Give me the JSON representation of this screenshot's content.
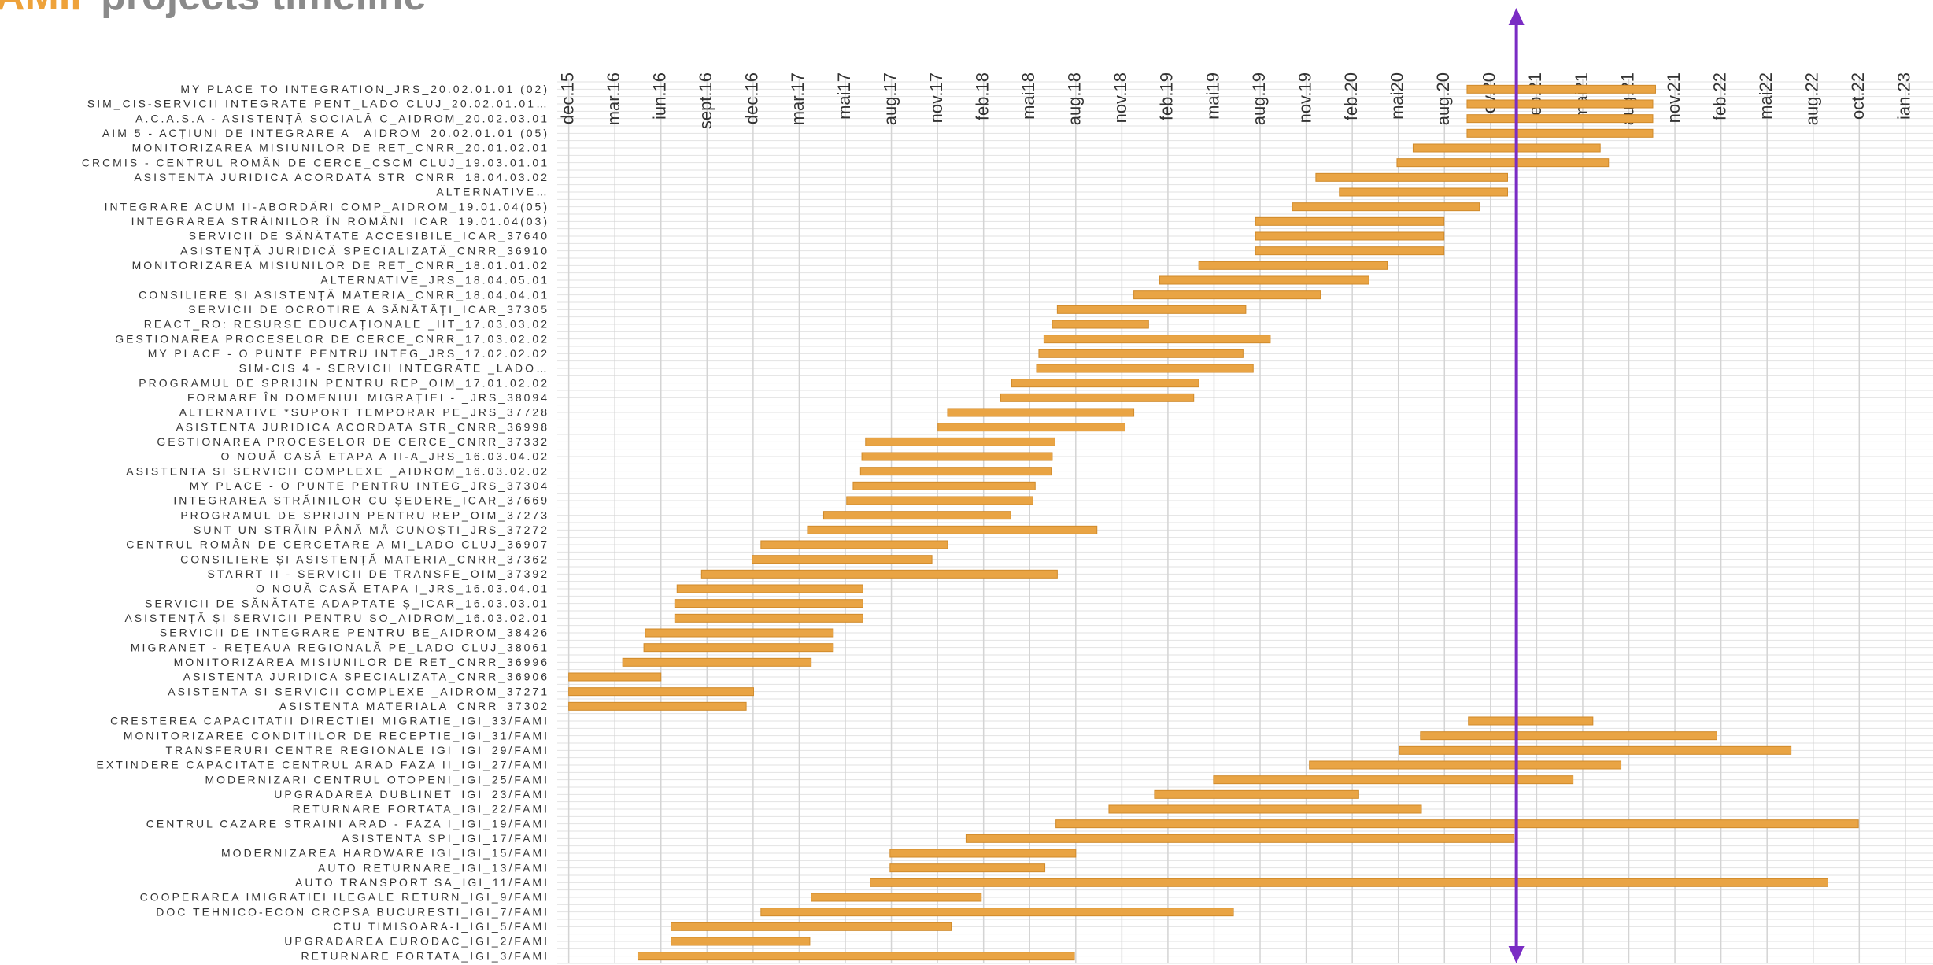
{
  "chart_data": {
    "type": "gantt",
    "title_prefix": "AMIF",
    "title": "projects timeline",
    "color": "#e9a444",
    "marker_color": "#7a2cc4",
    "grid": true,
    "xlim": [
      -0.25,
      29.6
    ],
    "xticks": [
      {
        "value": 0,
        "label": "dec.15"
      },
      {
        "value": 1,
        "label": "mar.16"
      },
      {
        "value": 2,
        "label": "iun.16"
      },
      {
        "value": 3,
        "label": "sept.16"
      },
      {
        "value": 4,
        "label": "dec.16"
      },
      {
        "value": 5,
        "label": "mar.17"
      },
      {
        "value": 6,
        "label": "mai17"
      },
      {
        "value": 7,
        "label": "aug.17"
      },
      {
        "value": 8,
        "label": "nov.17"
      },
      {
        "value": 9,
        "label": "feb.18"
      },
      {
        "value": 10,
        "label": "mai18"
      },
      {
        "value": 11,
        "label": "aug.18"
      },
      {
        "value": 12,
        "label": "nov.18"
      },
      {
        "value": 13,
        "label": "feb.19"
      },
      {
        "value": 14,
        "label": "mai19"
      },
      {
        "value": 15,
        "label": "aug.19"
      },
      {
        "value": 16,
        "label": "nov.19"
      },
      {
        "value": 17,
        "label": "feb.20"
      },
      {
        "value": 18,
        "label": "mai20"
      },
      {
        "value": 19,
        "label": "aug.20"
      },
      {
        "value": 20,
        "label": "nov.20"
      },
      {
        "value": 21,
        "label": "feb.21"
      },
      {
        "value": 22,
        "label": "mai21"
      },
      {
        "value": 23,
        "label": "aug.21"
      },
      {
        "value": 24,
        "label": "nov.21"
      },
      {
        "value": 25,
        "label": "feb.22"
      },
      {
        "value": 26,
        "label": "mai22"
      },
      {
        "value": 27,
        "label": "aug.22"
      },
      {
        "value": 28,
        "label": "oct.22"
      },
      {
        "value": 29,
        "label": "ian.23"
      }
    ],
    "today_marker": 20.56,
    "categories": [
      "MY PLACE TO INTEGRATION_JRS_20.02.01.01 (02)",
      "SIM_CIS-SERVICII INTEGRATE PENT_LADO CLUJ_20.02.01.01…",
      "A.C.A.S.A - ASISTENȚĂ SOCIALĂ C_AIDROM_20.02.03.01",
      "AIM 5 - ACȚIUNI DE INTEGRARE A _AIDROM_20.02.01.01 (05)",
      "MONITORIZAREA MISIUNILOR DE RET_CNRR_20.01.02.01",
      "CRCMIS - CENTRUL ROMÂN DE CERCE_CSCM CLUJ_19.03.01.01",
      "ASISTENTA JURIDICA ACORDATA STR_CNRR_18.04.03.02",
      "ALTERNATIVE…",
      "INTEGRARE ACUM II-ABORDĂRI COMP_AIDROM_19.01.04(05)",
      "INTEGRAREA STRĂINILOR ÎN ROMÂNI_ICAR_19.01.04(03)",
      "SERVICII DE SĂNĂTATE ACCESIBILE_ICAR_37640",
      "ASISTENȚĂ JURIDICĂ SPECIALIZATĂ_CNRR_36910",
      "MONITORIZAREA MISIUNILOR DE RET_CNRR_18.01.01.02",
      "ALTERNATIVE_JRS_18.04.05.01",
      "CONSILIERE ȘI ASISTENȚĂ MATERIA_CNRR_18.04.04.01",
      "SERVICII DE OCROTIRE A SĂNĂTĂȚI_ICAR_37305",
      "REACT_RO: RESURSE EDUCAȚIONALE _IIT_17.03.03.02",
      "GESTIONAREA PROCESELOR DE CERCE_CNRR_17.03.02.02",
      "MY PLACE - O PUNTE PENTRU INTEG_JRS_17.02.02.02",
      "SIM-CIS 4 - SERVICII INTEGRATE _LADO…",
      "PROGRAMUL DE SPRIJIN PENTRU REP_OIM_17.01.02.02",
      "FORMARE ÎN DOMENIUL MIGRAȚIEI - _JRS_38094",
      "ALTERNATIVE *SUPORT TEMPORAR PE_JRS_37728",
      "ASISTENTA JURIDICA ACORDATA STR_CNRR_36998",
      "GESTIONAREA PROCESELOR DE CERCE_CNRR_37332",
      "O NOUĂ CASĂ ETAPA A II-A_JRS_16.03.04.02",
      "ASISTENTA SI SERVICII COMPLEXE _AIDROM_16.03.02.02",
      "MY PLACE - O PUNTE PENTRU INTEG_JRS_37304",
      "INTEGRAREA STRĂINILOR CU ȘEDERE_ICAR_37669",
      "PROGRAMUL DE SPRIJIN PENTRU REP_OIM_37273",
      "SUNT UN STRĂIN PÂNĂ MĂ CUNOȘTI_JRS_37272",
      "CENTRUL ROMÂN DE CERCETARE A MI_LADO CLUJ_36907",
      "CONSILIERE ȘI ASISTENȚĂ MATERIA_CNRR_37362",
      "STARRT II - SERVICII DE TRANSFE_OIM_37392",
      "O NOUĂ CASĂ ETAPA I_JRS_16.03.04.01",
      "SERVICII DE SĂNĂTATE ADAPTATE Ș_ICAR_16.03.03.01",
      "ASISTENȚĂ ȘI SERVICII PENTRU SO_AIDROM_16.03.02.01",
      "SERVICII DE INTEGRARE PENTRU BE_AIDROM_38426",
      "MIGRANET - REȚEAUA REGIONALĂ PE_LADO CLUJ_38061",
      "MONITORIZAREA MISIUNILOR DE RET_CNRR_36996",
      "ASISTENTA JURIDICA SPECIALIZATA_CNRR_36906",
      "ASISTENTA SI SERVICII COMPLEXE _AIDROM_37271",
      "ASISTENTA MATERIALA_CNRR_37302",
      "CRESTEREA CAPACITATII DIRECTIEI MIGRATIE_IGI_33/FAMI",
      "MONITORIZAREE CONDITIILOR DE RECEPTIE_IGI_31/FAMI",
      "TRANSFERURI CENTRE REGIONALE IGI_IGI_29/FAMI",
      "EXTINDERE CAPACITATE CENTRUL ARAD FAZA II_IGI_27/FAMI",
      "MODERNIZARI CENTRUL OTOPENI_IGI_25/FAMI",
      "UPGRADAREA DUBLINET_IGI_23/FAMI",
      "RETURNARE FORTATA_IGI_22/FAMI",
      "CENTRUL CAZARE STRAINI ARAD - FAZA I_IGI_19/FAMI",
      "ASISTENTA SPI_IGI_17/FAMI",
      "MODERNIZAREA HARDWARE IGI_IGI_15/FAMI",
      "AUTO RETURNARE_IGI_13/FAMI",
      "AUTO TRANSPORT SA_IGI_11/FAMI",
      "COOPERAREA IMIGRATIEI ILEGALE RETURN_IGI_9/FAMI",
      "DOC TEHNICO-ECON CRCPSA BUCURESTI_IGI_7/FAMI",
      "CTU TIMISOARA-I_IGI_5/FAMI",
      "UPGRADAREA EURODAC_IGI_2/FAMI",
      "RETURNARE FORTATA_IGI_3/FAMI"
    ],
    "starts": [
      19.49,
      19.49,
      19.49,
      19.49,
      18.32,
      17.97,
      16.21,
      16.72,
      15.7,
      14.9,
      14.9,
      14.9,
      13.67,
      12.82,
      12.26,
      10.6,
      10.49,
      10.31,
      10.2,
      10.15,
      9.61,
      9.37,
      8.22,
      8.01,
      6.44,
      6.36,
      6.33,
      6.17,
      6.03,
      5.53,
      5.18,
      4.17,
      3.98,
      2.88,
      2.35,
      2.3,
      2.3,
      1.66,
      1.63,
      1.17,
      0,
      0,
      0,
      19.52,
      18.48,
      18.02,
      16.07,
      13.99,
      12.71,
      11.72,
      10.57,
      8.62,
      6.97,
      6.97,
      6.54,
      5.26,
      4.17,
      2.22,
      2.22,
      1.5
    ],
    "ends": [
      23.58,
      23.52,
      23.52,
      23.52,
      22.38,
      22.56,
      20.37,
      20.37,
      19.76,
      18.99,
      18.99,
      18.99,
      17.76,
      17.36,
      16.31,
      14.69,
      12.58,
      15.22,
      14.63,
      14.85,
      13.67,
      13.56,
      12.26,
      12.07,
      10.55,
      10.49,
      10.47,
      10.12,
      10.07,
      9.59,
      11.46,
      8.22,
      7.88,
      10.6,
      6.38,
      6.38,
      6.38,
      5.74,
      5.74,
      5.26,
      2.0,
      4.01,
      3.85,
      22.22,
      24.91,
      26.52,
      22.83,
      21.79,
      17.14,
      18.5,
      27.98,
      20.51,
      11.0,
      10.33,
      27.32,
      8.95,
      14.42,
      8.3,
      5.23,
      10.97
    ]
  }
}
